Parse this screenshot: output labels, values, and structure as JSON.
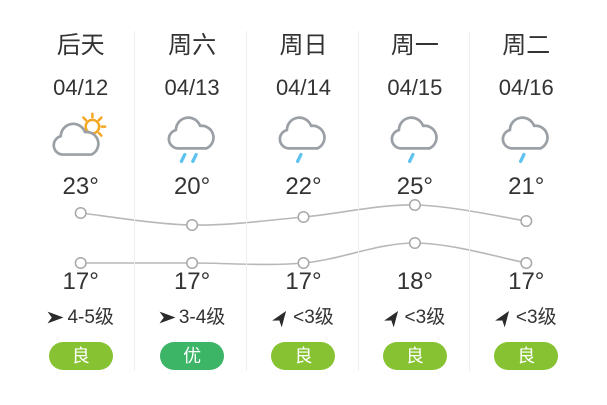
{
  "widget": {
    "title_hidden": true
  },
  "colors": {
    "text": "#333333",
    "divider": "#efefef",
    "chart_line": "#b8b8b8",
    "chart_marker_stroke": "#a8a8a8",
    "chart_marker_fill": "#ffffff",
    "cloud": "#9aa0a6",
    "sun": "#f5a623",
    "rain_drop": "#5ec3ee",
    "wind_arrow": "#2b2b2b",
    "aqi_good": "#86c232",
    "aqi_excellent": "#3cb566"
  },
  "columns": [
    {
      "day": "后天",
      "date": "04/12",
      "icon": "partly-cloudy-sun",
      "high_label": "23°",
      "low_label": "17°",
      "wind_icon": "arrow-east",
      "wind_label": "4-5级",
      "aqi": "良",
      "aqi_level": "good"
    },
    {
      "day": "周六",
      "date": "04/13",
      "icon": "moderate-rain",
      "high_label": "20°",
      "low_label": "17°",
      "wind_icon": "arrow-east",
      "wind_label": "3-4级",
      "aqi": "优",
      "aqi_level": "excellent"
    },
    {
      "day": "周日",
      "date": "04/14",
      "icon": "light-rain",
      "high_label": "22°",
      "low_label": "17°",
      "wind_icon": "arrow-northeast",
      "wind_label": "<3级",
      "aqi": "良",
      "aqi_level": "good"
    },
    {
      "day": "周一",
      "date": "04/15",
      "icon": "light-rain",
      "high_label": "25°",
      "low_label": "18°",
      "wind_icon": "arrow-northeast",
      "wind_label": "<3级",
      "aqi": "良",
      "aqi_level": "good"
    },
    {
      "day": "周二",
      "date": "04/16",
      "icon": "light-rain",
      "high_label": "21°",
      "low_label": "17°",
      "wind_icon": "arrow-northeast",
      "wind_label": "<3级",
      "aqi": "良",
      "aqi_level": "good"
    }
  ],
  "chart_data": {
    "type": "line",
    "categories": [
      "后天 04/12",
      "周六 04/13",
      "周日 04/14",
      "周一 04/15",
      "周二 04/16"
    ],
    "series": [
      {
        "name": "high",
        "values": [
          23,
          20,
          22,
          25,
          21
        ]
      },
      {
        "name": "low",
        "values": [
          17,
          17,
          17,
          18,
          17
        ]
      }
    ],
    "unit": "°C",
    "grid": false,
    "legend": "none",
    "marker": "white-circle",
    "note": "each series independently normalized to its own 20px band"
  }
}
